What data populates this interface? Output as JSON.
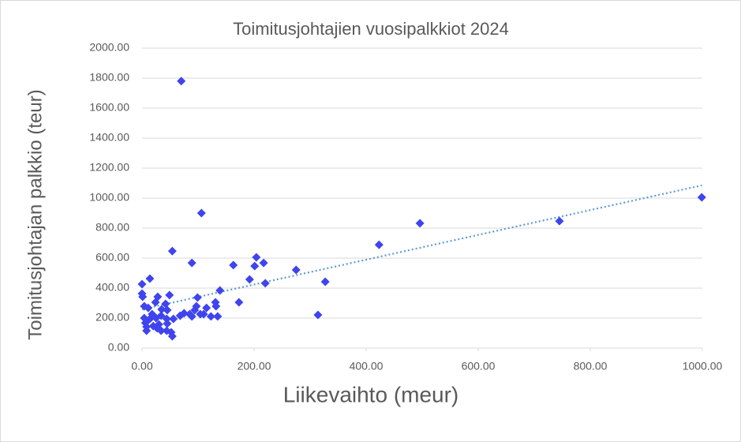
{
  "chart_data": {
    "type": "scatter",
    "title": "Toimitusjohtajien vuosipalkkiot 2024",
    "x_label": "Liikevaihto (meur)",
    "y_label": "Toimitusjohtajan palkkio (teur)",
    "x": [
      70,
      106,
      54,
      89,
      163,
      204,
      201,
      217,
      192,
      220,
      275,
      327,
      423,
      496,
      745,
      999,
      314,
      173,
      139,
      131,
      132,
      0,
      0,
      1,
      14,
      49,
      99,
      4,
      11,
      24,
      28,
      42,
      35,
      18,
      45,
      56,
      75,
      85,
      94,
      97,
      104,
      115,
      110,
      123,
      135,
      89,
      68,
      4,
      6,
      14,
      8,
      8,
      20,
      25,
      30,
      44,
      34,
      45,
      27,
      34,
      44,
      52,
      54
    ],
    "values": [
      1780,
      900,
      647,
      568,
      553,
      605,
      547,
      568,
      458,
      432,
      521,
      442,
      689,
      832,
      847,
      1005,
      221,
      305,
      384,
      305,
      279,
      426,
      363,
      342,
      463,
      353,
      337,
      279,
      268,
      305,
      342,
      295,
      258,
      226,
      253,
      195,
      232,
      226,
      253,
      279,
      226,
      268,
      226,
      211,
      211,
      211,
      216,
      200,
      168,
      195,
      142,
      116,
      147,
      200,
      158,
      195,
      216,
      163,
      132,
      116,
      116,
      105,
      79
    ],
    "color": "#3f44ee",
    "trendline": "linear",
    "trendline_color": "#5b9bd5",
    "xlim": [
      0,
      1000
    ],
    "xticks": [
      {
        "value": 0,
        "label": "0.00"
      },
      {
        "value": 200,
        "label": "200.00"
      },
      {
        "value": 400,
        "label": "400.00"
      },
      {
        "value": 600,
        "label": "600.00"
      },
      {
        "value": 800,
        "label": "800.00"
      },
      {
        "value": 1000,
        "label": "1000.00"
      }
    ],
    "ylim": [
      0,
      2000
    ],
    "yticks": [
      {
        "value": 0,
        "label": "0.00"
      },
      {
        "value": 200,
        "label": "200.00"
      },
      {
        "value": 400,
        "label": "400.00"
      },
      {
        "value": 600,
        "label": "600.00"
      },
      {
        "value": 800,
        "label": "800.00"
      },
      {
        "value": 1000,
        "label": "1000.00"
      },
      {
        "value": 1200,
        "label": "1200.00"
      },
      {
        "value": 1400,
        "label": "1400.00"
      },
      {
        "value": 1600,
        "label": "1600.00"
      },
      {
        "value": 1800,
        "label": "1800.00"
      },
      {
        "value": 2000,
        "label": "2000.00"
      }
    ],
    "grid": true
  }
}
